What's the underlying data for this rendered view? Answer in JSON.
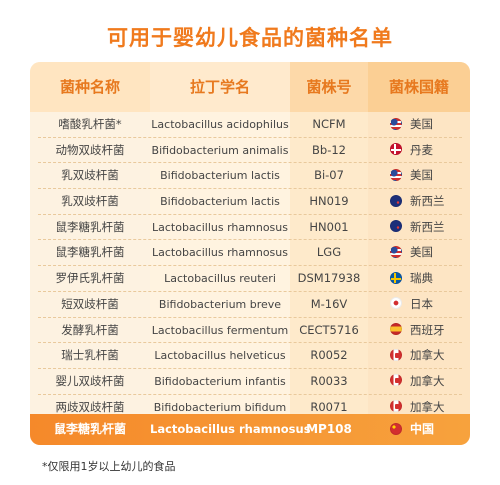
{
  "title": "可用于婴幼儿食品的菌种名单",
  "columns": [
    "菌种名称",
    "拉丁学名",
    "菌株号",
    "菌株国籍"
  ],
  "rows": [
    {
      "name": "嗜酸乳杆菌*",
      "latin": "Lactobacillus acidophilus",
      "strain": "NCFM",
      "flag": "flag-us",
      "country": "美国"
    },
    {
      "name": "动物双歧杆菌",
      "latin": "Bifidobacterium animalis",
      "strain": "Bb-12",
      "flag": "flag-dk",
      "country": "丹麦"
    },
    {
      "name": "乳双歧杆菌",
      "latin": "Bifidobacterium lactis",
      "strain": "Bi-07",
      "flag": "flag-us",
      "country": "美国"
    },
    {
      "name": "乳双歧杆菌",
      "latin": "Bifidobacterium lactis",
      "strain": "HN019",
      "flag": "flag-nz",
      "country": "新西兰"
    },
    {
      "name": "鼠李糖乳杆菌",
      "latin": "Lactobacillus rhamnosus",
      "strain": "HN001",
      "flag": "flag-nz",
      "country": "新西兰"
    },
    {
      "name": "鼠李糖乳杆菌",
      "latin": "Lactobacillus rhamnosus",
      "strain": "LGG",
      "flag": "flag-us",
      "country": "美国"
    },
    {
      "name": "罗伊氏乳杆菌",
      "latin": "Lactobacillus reuteri",
      "strain": "DSM17938",
      "flag": "flag-se",
      "country": "瑞典"
    },
    {
      "name": "短双歧杆菌",
      "latin": "Bifidobacterium breve",
      "strain": "M-16V",
      "flag": "flag-jp",
      "country": "日本"
    },
    {
      "name": "发酵乳杆菌",
      "latin": "Lactobacillus fermentum",
      "strain": "CECT5716",
      "flag": "flag-es",
      "country": "西班牙"
    },
    {
      "name": "瑞士乳杆菌",
      "latin": "Lactobacillus helveticus",
      "strain": "R0052",
      "flag": "flag-ca",
      "country": "加拿大"
    },
    {
      "name": "婴儿双歧杆菌",
      "latin": "Bifidobacterium infantis",
      "strain": "R0033",
      "flag": "flag-ca",
      "country": "加拿大"
    },
    {
      "name": "两歧双歧杆菌",
      "latin": "Bifidobacterium bifidum",
      "strain": "R0071",
      "flag": "flag-ca",
      "country": "加拿大"
    }
  ],
  "highlight": {
    "name": "鼠李糖乳杆菌",
    "latin": "Lactobacillus rhamnosus",
    "strain": "MP108",
    "flag": "flag-cn",
    "country": "中国"
  },
  "footnote": "*仅限用1岁以上幼儿的食品",
  "colors": {
    "accent": "#f07a1d",
    "highlight": "#f5892a"
  }
}
